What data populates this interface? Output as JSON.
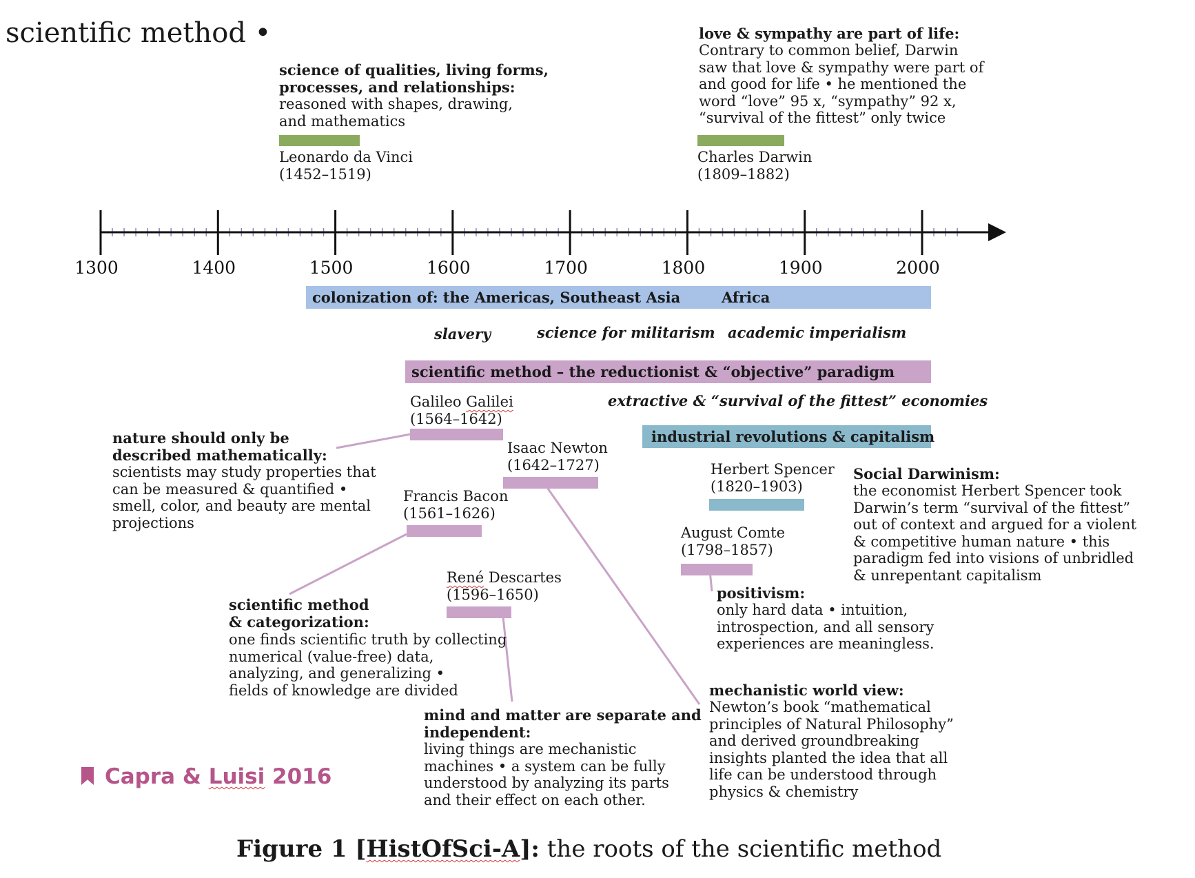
{
  "page_title": "scientific method •",
  "caption": {
    "bold": "Figure 1 [HistOfSci-A]:",
    "rest": " the roots of the scientific method"
  },
  "citation": "Capra & Luisi 2016",
  "timeline": {
    "start": 1300,
    "end": 2000,
    "labels": [
      "1300",
      "1400",
      "1500",
      "1600",
      "1700",
      "1800",
      "1900",
      "2000"
    ]
  },
  "bands": {
    "colonization": "colonization of: the Americas, Southeast Asia",
    "africa": "Africa",
    "slavery": "slavery",
    "militarism": "science for militarism",
    "imperialism": "academic imperialism",
    "paradigm": "scientific method – the reductionist & “objective” paradigm",
    "economies": "extractive & “survival of the fittest” economies",
    "industrial": "industrial revolutions & capitalism"
  },
  "people": {
    "davinci": {
      "name": "Leonardo da Vinci",
      "dates": "(1452–1519)"
    },
    "darwin": {
      "name": "Charles Darwin",
      "dates": "(1809–1882)"
    },
    "galileo": {
      "name": "Galileo Galilei",
      "dates": "(1564–1642)"
    },
    "newton": {
      "name": "Isaac Newton",
      "dates": "(1642–1727)"
    },
    "bacon": {
      "name": "Francis Bacon",
      "dates": "(1561–1626)"
    },
    "descartes": {
      "name": "René Descartes",
      "dates": "(1596–1650)"
    },
    "spencer": {
      "name": "Herbert Spencer",
      "dates": "(1820–1903)"
    },
    "comte": {
      "name": "August Comte",
      "dates": "(1798–1857)"
    }
  },
  "notes": {
    "davinci": {
      "title": [
        "science of qualities, living forms,",
        "processes, and relationships:"
      ],
      "body": [
        "reasoned with shapes, drawing,",
        "and mathematics"
      ]
    },
    "darwin": {
      "title": [
        "love & sympathy are part of life:"
      ],
      "body": [
        "Contrary to common belief, Darwin",
        "saw that love & sympathy were part of",
        "and good for life • he mentioned the",
        "word “love” 95 x, “sympathy” 92 x,",
        "“survival of the fittest” only twice"
      ]
    },
    "galileo": {
      "title": [
        "nature should only be",
        "described mathematically:"
      ],
      "body": [
        "scientists may study properties that",
        "can be measured & quantified •",
        "smell, color, and beauty are mental",
        "projections"
      ]
    },
    "bacon": {
      "title": [
        "scientific method",
        "& categorization:"
      ],
      "body": [
        "one finds scientific truth by collecting",
        "numerical (value-free) data,",
        "analyzing, and generalizing •",
        "fields of knowledge are divided"
      ]
    },
    "descartes": {
      "title": [
        "mind and matter are separate and",
        "independent:"
      ],
      "body": [
        "living things are mechanistic",
        "machines • a system can be fully",
        "understood by analyzing its parts",
        "and their effect on each other."
      ]
    },
    "newton": {
      "title": [
        "mechanistic world view:"
      ],
      "body": [
        "Newton’s book “mathematical",
        "principles of Natural Philosophy”",
        "and derived groundbreaking",
        "insights planted the idea that all",
        "life can be understood through",
        "physics & chemistry"
      ]
    },
    "comte": {
      "title": [
        "positivism:"
      ],
      "body": [
        "only hard data • intuition,",
        "introspection, and all sensory",
        "experiences are meaningless."
      ]
    },
    "spencer": {
      "title": [
        "Social Darwinism:"
      ],
      "body": [
        "the economist Herbert Spencer took",
        "Darwin’s term “survival of the fittest”",
        "out of context and argued for a violent",
        "& competitive human nature • this",
        "paradigm fed into visions of unbridled",
        "& unrepentant capitalism"
      ]
    }
  },
  "colors": {
    "green": "#8aab5e",
    "blue": "#a7c2e6",
    "pink": "#c9a3c8",
    "teal": "#8ab9cb",
    "citation": "#b5558a"
  }
}
